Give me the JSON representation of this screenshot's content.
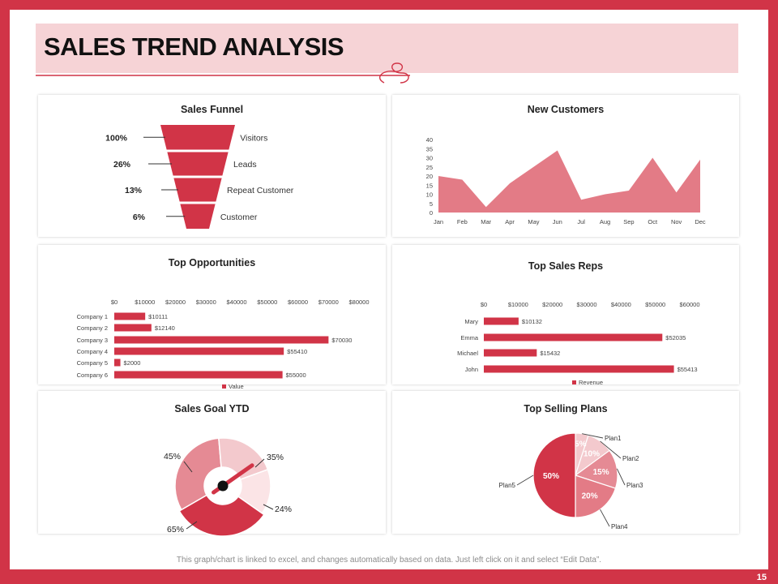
{
  "slide": {
    "title": "SALES TREND ANALYSIS",
    "footer": "This graph/chart is linked to excel, and changes automatically based on data. Just left click on it and select “Edit Data”.",
    "page_number": "15"
  },
  "colors": {
    "brand_red": "#d13447",
    "title_band": "#f6d3d6",
    "bar_red": "#d13447",
    "area_pink": "#e37b86",
    "light_pink": "#f3c9cd",
    "mid_pink": "#e58a94",
    "donut_light": "#fbe4e6"
  },
  "chart_data": [
    {
      "id": "funnel",
      "type": "bar",
      "title": "Sales Funnel",
      "categories": [
        "Visitors",
        "Leads",
        "Repeat Customer",
        "Customer"
      ],
      "labels": [
        "100%",
        "26%",
        "13%",
        "6%"
      ],
      "values": [
        100,
        26,
        13,
        6
      ]
    },
    {
      "id": "customers",
      "type": "area",
      "title": "New Customers",
      "categories": [
        "Jan",
        "Feb",
        "Mar",
        "Apr",
        "May",
        "Jun",
        "Jul",
        "Aug",
        "Sep",
        "Oct",
        "Nov",
        "Dec"
      ],
      "values": [
        20,
        18,
        3,
        16,
        25,
        34,
        7,
        10,
        12,
        30,
        11,
        29
      ],
      "ylim": [
        0,
        40
      ],
      "yticks": [
        "0",
        "5",
        "10",
        "15",
        "20",
        "25",
        "30",
        "35",
        "40"
      ]
    },
    {
      "id": "opps",
      "type": "bar",
      "title": "Top Opportunities",
      "categories": [
        "Company 1",
        "Company 2",
        "Company 3",
        "Company 4",
        "Company 5",
        "Company 6"
      ],
      "values": [
        10111,
        12140,
        70030,
        55410,
        2000,
        55000
      ],
      "value_labels": [
        "$10111",
        "$12140",
        "$70030",
        "$55410",
        "$2000",
        "$55000"
      ],
      "xticks": [
        "$0",
        "$10000",
        "$20000",
        "$30000",
        "$40000",
        "$50000",
        "$60000",
        "$70000",
        "$80000"
      ],
      "xlim": [
        0,
        80000
      ],
      "legend": "Value"
    },
    {
      "id": "reps",
      "type": "bar",
      "title": "Top Sales Reps",
      "categories": [
        "Mary",
        "Emma",
        "Michael",
        "John"
      ],
      "values": [
        10132,
        52035,
        15432,
        55413
      ],
      "value_labels": [
        "$10132",
        "$52035",
        "$15432",
        "$55413"
      ],
      "xticks": [
        "$0",
        "$10000",
        "$20000",
        "$30000",
        "$40000",
        "$50000",
        "$60000"
      ],
      "xlim": [
        0,
        60000
      ],
      "legend": "Revenue"
    },
    {
      "id": "goal",
      "type": "pie",
      "title": "Sales Goal YTD",
      "categories": [
        "45%",
        "35%",
        "24%",
        "65%"
      ],
      "values": [
        45,
        35,
        24,
        65
      ],
      "labels": [
        "45%",
        "35%",
        "24%",
        "65%"
      ]
    },
    {
      "id": "plans",
      "type": "pie",
      "title": "Top Selling Plans",
      "categories": [
        "Plan1",
        "Plan2",
        "Plan3",
        "Plan4",
        "Plan5"
      ],
      "values": [
        5,
        10,
        15,
        20,
        50
      ],
      "labels": [
        "5%",
        "10%",
        "15%",
        "20%",
        "50%"
      ]
    }
  ]
}
